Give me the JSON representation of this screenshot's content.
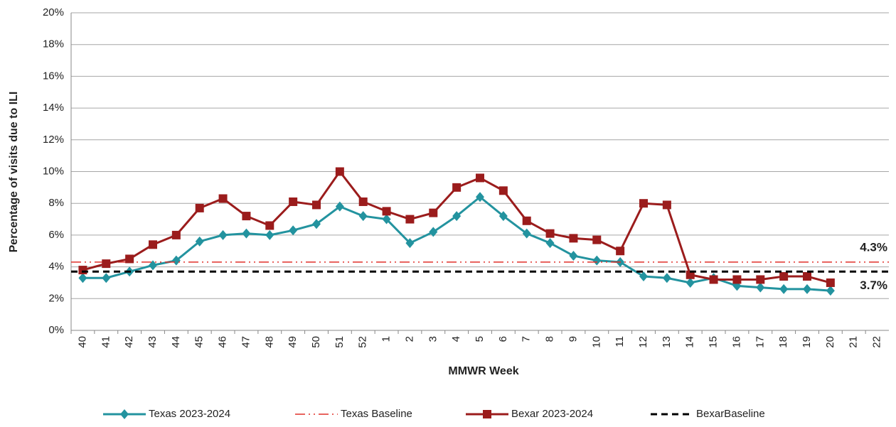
{
  "chart_data": {
    "type": "line",
    "y_title": "Percentage of visits due to ILI",
    "x_title": "MMWR Week",
    "categories": [
      "40",
      "41",
      "42",
      "43",
      "44",
      "45",
      "46",
      "47",
      "48",
      "49",
      "50",
      "51",
      "52",
      "1",
      "2",
      "3",
      "4",
      "5",
      "6",
      "7",
      "8",
      "9",
      "10",
      "11",
      "12",
      "13",
      "14",
      "15",
      "16",
      "17",
      "18",
      "19",
      "20",
      "21",
      "22"
    ],
    "ylim": [
      0,
      20
    ],
    "yticks": [
      {
        "value": 0,
        "label": "0%"
      },
      {
        "value": 2,
        "label": "2%"
      },
      {
        "value": 4,
        "label": "4%"
      },
      {
        "value": 6,
        "label": "6%"
      },
      {
        "value": 8,
        "label": "8%"
      },
      {
        "value": 10,
        "label": "10%"
      },
      {
        "value": 12,
        "label": "12%"
      },
      {
        "value": 14,
        "label": "14%"
      },
      {
        "value": 16,
        "label": "16%"
      },
      {
        "value": 18,
        "label": "18%"
      },
      {
        "value": 20,
        "label": "20%"
      }
    ],
    "grid": true,
    "series": [
      {
        "name": "Texas 2023-2024",
        "color": "#23939f",
        "marker": "diamond",
        "values": [
          3.3,
          3.3,
          3.7,
          4.1,
          4.4,
          5.6,
          6.0,
          6.1,
          6.0,
          6.3,
          6.7,
          7.8,
          7.2,
          7.0,
          5.5,
          6.2,
          7.2,
          8.4,
          7.2,
          6.1,
          5.5,
          4.7,
          4.4,
          4.3,
          3.4,
          3.3,
          3.0,
          3.3,
          2.8,
          2.7,
          2.6,
          2.6,
          2.5,
          null,
          null
        ]
      },
      {
        "name": "Texas Baseline",
        "color": "#e0302a",
        "dash": "14 5 2 5 2 5",
        "value": 4.3,
        "value_label": "4.3%"
      },
      {
        "name": "Bexar 2023-2024",
        "color": "#9b1c1c",
        "marker": "square",
        "values": [
          3.8,
          4.2,
          4.5,
          5.4,
          6.0,
          7.7,
          8.3,
          7.2,
          6.6,
          8.1,
          7.9,
          10.0,
          8.1,
          7.5,
          7.0,
          7.4,
          9.0,
          9.6,
          8.8,
          6.9,
          6.1,
          5.8,
          5.7,
          5.0,
          8.0,
          7.9,
          3.5,
          3.2,
          3.2,
          3.2,
          3.4,
          3.4,
          3.0,
          null,
          null
        ]
      },
      {
        "name": "BexarBaseline",
        "color": "#000000",
        "dash": "9 6",
        "value": 3.7,
        "value_label": "3.7%"
      }
    ]
  }
}
